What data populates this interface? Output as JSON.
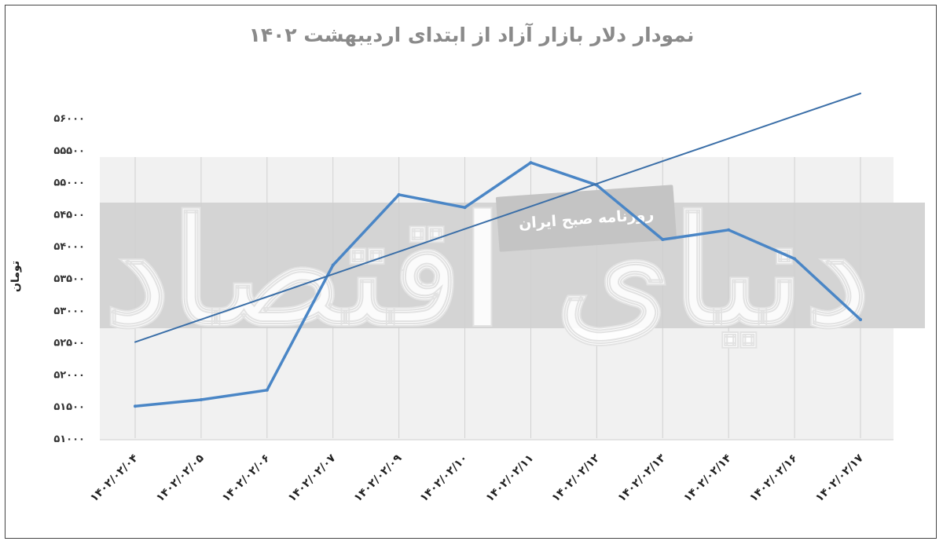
{
  "chart_data": {
    "type": "line",
    "title": "نمودار دلار بازار آزاد از ابتدای اردیبهشت ۱۴۰۲",
    "ylabel": "تومان",
    "xlabel": "",
    "categories": [
      "۱۴۰۲/۰۲/۰۴",
      "۱۴۰۲/۰۲/۰۵",
      "۱۴۰۲/۰۲/۰۶",
      "۱۴۰۲/۰۲/۰۷",
      "۱۴۰۲/۰۲/۰۹",
      "۱۴۰۲/۰۲/۱۰",
      "۱۴۰۲/۰۲/۱۱",
      "۱۴۰۲/۰۲/۱۲",
      "۱۴۰۲/۰۲/۱۳",
      "۱۴۰۲/۰۲/۱۴",
      "۱۴۰۲/۰۲/۱۶",
      "۱۴۰۲/۰۲/۱۷"
    ],
    "series": [
      {
        "values": [
          51500,
          51600,
          51750,
          53700,
          54800,
          54600,
          55300,
          54950,
          54100,
          54250,
          53800,
          52850
        ],
        "color": "#4a86c6"
      },
      {
        "values": [
          52500,
          52853,
          53206,
          53559,
          53912,
          54265,
          54618,
          54971,
          55324,
          55677,
          56030,
          56380
        ],
        "color": "#3b6fa8",
        "style": "linear-trend"
      }
    ],
    "yticks": [
      "۵۱۰۰۰",
      "۵۱۵۰۰",
      "۵۲۰۰۰",
      "۵۲۵۰۰",
      "۵۳۰۰۰",
      "۵۳۵۰۰",
      "۵۴۰۰۰",
      "۵۴۵۰۰",
      "۵۵۰۰۰",
      "۵۵۵۰۰",
      "۵۶۰۰۰"
    ],
    "ylim": [
      51000,
      56000
    ],
    "grid": "vertical",
    "legend": "none"
  },
  "watermark": {
    "brand": "دنیای اقتصاد",
    "tagline": "روزنامه صبح ایران"
  }
}
